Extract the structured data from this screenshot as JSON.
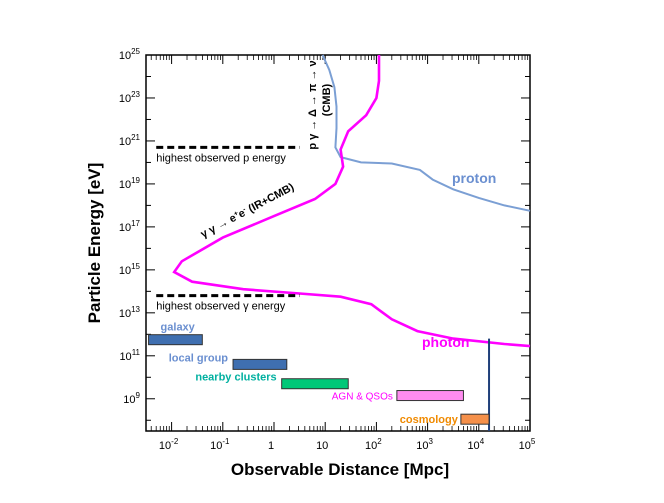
{
  "chart_data": {
    "type": "line",
    "title": "",
    "xlabel": "Observable Distance [Mpc]",
    "ylabel": "Particle Energy [eV]",
    "x_scale": "log",
    "y_scale": "log",
    "xlim_log10": [
      -2.5,
      5
    ],
    "ylim_log10": [
      7.5,
      25
    ],
    "x_tick_exponents": [
      -2,
      -1,
      0,
      1,
      2,
      3,
      4,
      5
    ],
    "x_tick_labels": [
      "10",
      "10",
      "1",
      "10",
      "10",
      "10",
      "10",
      "10"
    ],
    "x_tick_sups": [
      "-2",
      "-1",
      "",
      "",
      "2",
      "3",
      "4",
      "5"
    ],
    "y_tick_exponents": [
      9,
      11,
      13,
      15,
      17,
      19,
      21,
      23,
      25
    ],
    "y_tick_labels": [
      "10",
      "10",
      "10",
      "10",
      "10",
      "10",
      "10",
      "10",
      "10"
    ],
    "y_tick_sups": [
      "9",
      "11",
      "13",
      "15",
      "17",
      "19",
      "21",
      "23",
      "25"
    ],
    "series": [
      {
        "name": "proton",
        "color": "#7b9fd4",
        "points_log10": [
          [
            0.95,
            25
          ],
          [
            1.08,
            24.3
          ],
          [
            1.18,
            23.5
          ],
          [
            1.22,
            22.6
          ],
          [
            1.22,
            21.6
          ],
          [
            1.2,
            20.7
          ],
          [
            1.3,
            20.25
          ],
          [
            1.7,
            20.0
          ],
          [
            2.3,
            19.95
          ],
          [
            2.85,
            19.65
          ],
          [
            3.1,
            19.2
          ],
          [
            3.5,
            18.75
          ],
          [
            4.0,
            18.35
          ],
          [
            4.5,
            18.0
          ],
          [
            5.0,
            17.75
          ]
        ]
      },
      {
        "name": "photon",
        "color": "#ff00ff",
        "points_log10": [
          [
            2.05,
            25
          ],
          [
            2.05,
            23.8
          ],
          [
            2.0,
            23.0
          ],
          [
            1.8,
            22.2
          ],
          [
            1.45,
            21.45
          ],
          [
            1.3,
            20.6
          ],
          [
            1.35,
            19.8
          ],
          [
            1.2,
            19.0
          ],
          [
            0.8,
            18.3
          ],
          [
            0.0,
            17.5
          ],
          [
            -1.0,
            16.5
          ],
          [
            -1.8,
            15.4
          ],
          [
            -1.95,
            14.9
          ],
          [
            -1.6,
            14.45
          ],
          [
            -0.6,
            14.1
          ],
          [
            0.5,
            13.9
          ],
          [
            1.3,
            13.75
          ],
          [
            1.9,
            13.4
          ],
          [
            2.3,
            12.7
          ],
          [
            2.8,
            12.15
          ],
          [
            3.5,
            11.8
          ],
          [
            4.5,
            11.55
          ],
          [
            5.0,
            11.45
          ]
        ]
      }
    ],
    "series_labels": {
      "proton": "proton",
      "photon": "photon"
    },
    "thresholds": [
      {
        "label": "highest observed p energy",
        "log10_energy": 20.7,
        "x_range_log10": [
          -2.3,
          0.5
        ]
      },
      {
        "label": "highest observed γ energy",
        "log10_energy": 13.8,
        "x_range_log10": [
          -2.3,
          0.5
        ]
      }
    ],
    "reaction_labels": {
      "proton_line1": "p γ → Δ → π → ν",
      "proton_line2": "(CMB)",
      "photon_prefix": "γ γ → e",
      "photon_sup1": "+",
      "photon_mid": "e",
      "photon_sup2": "-",
      "photon_suffix": " (IR+CMB)"
    },
    "scale_bars": [
      {
        "label": "galaxy",
        "x_log10": [
          -2.45,
          -1.4
        ],
        "y_log10": 11.75,
        "fill": "#3f6fb0",
        "label_color": "#6a8fd0"
      },
      {
        "label": "local group",
        "x_log10": [
          -0.8,
          0.25
        ],
        "y_log10": 10.6,
        "fill": "#3f6fb0",
        "label_color": "#6a8fd0"
      },
      {
        "label": "nearby clusters",
        "x_log10": [
          0.15,
          1.45
        ],
        "y_log10": 9.7,
        "fill": "#00c878",
        "label_color": "#00b0a0"
      },
      {
        "label": "AGN & QSOs",
        "x_log10": [
          2.4,
          3.7
        ],
        "y_log10": 9.15,
        "fill": "#ff8cf0",
        "label_color": "#ff00ff"
      },
      {
        "label": "cosmology",
        "x_log10": [
          3.65,
          4.2
        ],
        "y_log10": 8.05,
        "fill": "#f5904a",
        "label_color": "#f08a00"
      }
    ],
    "horizon_line": {
      "x_log10": 4.2,
      "y_from_log10": 7.5,
      "y_to_log10": 11.8,
      "color": "#1f3f7a"
    }
  }
}
